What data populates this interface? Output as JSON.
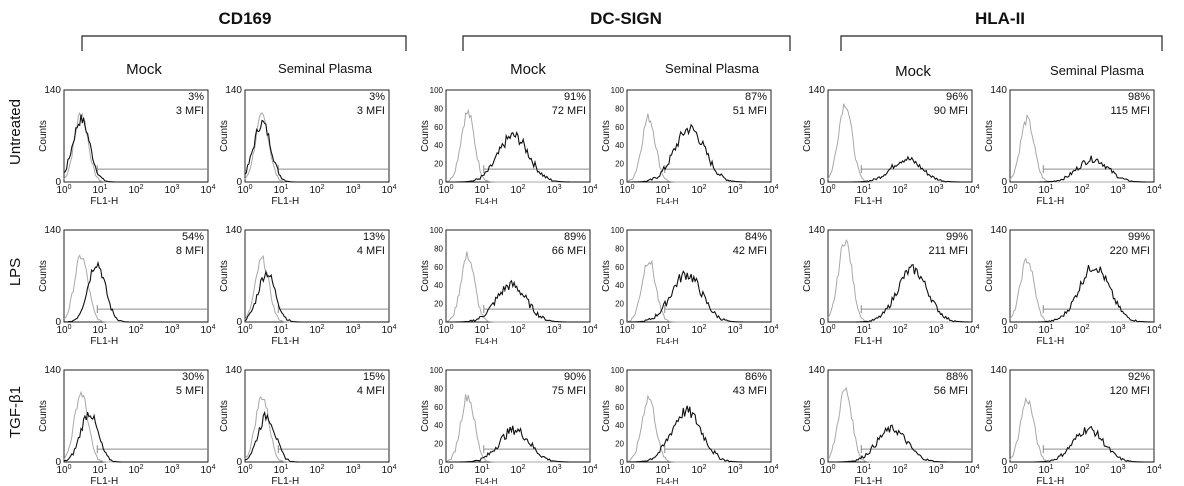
{
  "figure": {
    "markers": [
      {
        "id": "cd169",
        "title": "CD169",
        "scale": "140"
      },
      {
        "id": "dcsign",
        "title": "DC-SIGN",
        "scale": "100"
      },
      {
        "id": "hla",
        "title": "HLA-II",
        "scale": "140"
      }
    ],
    "conditions": [
      "Mock",
      "Seminal Plasma"
    ],
    "treatments": [
      "Untreated",
      "LPS",
      "TGF-β1"
    ],
    "y_axis_label": "Counts",
    "x_axis_labels": {
      "cd169": "FL1-H",
      "dcsign": "FL4-H",
      "hla": "FL1-H"
    },
    "x_ticks": [
      "10",
      "10",
      "10",
      "10",
      "10"
    ],
    "x_tick_exponents": [
      "0",
      "1",
      "2",
      "3",
      "4"
    ],
    "y_ticks_140": [
      "0",
      "140"
    ],
    "y_ticks_100": [
      "0",
      "20",
      "40",
      "60",
      "80",
      "100"
    ]
  },
  "chart_data": {
    "type": "histogram-overlay",
    "x_scale": "log",
    "xlim": [
      1,
      10000
    ],
    "panels": [
      {
        "marker": "CD169",
        "condition": "Mock",
        "treatment": "Untreated",
        "percent": "3%",
        "mfi": "3 MFI",
        "ymax": 140,
        "control_peak": [
          3,
          105
        ],
        "sample_peak": [
          3,
          95
        ]
      },
      {
        "marker": "CD169",
        "condition": "Seminal Plasma",
        "treatment": "Untreated",
        "percent": "3%",
        "mfi": "3 MFI",
        "ymax": 140,
        "control_peak": [
          3,
          100
        ],
        "sample_peak": [
          3,
          90
        ]
      },
      {
        "marker": "DC-SIGN",
        "condition": "Mock",
        "treatment": "Untreated",
        "percent": "91%",
        "mfi": "72 MFI",
        "ymax": 100,
        "control_peak": [
          4,
          75
        ],
        "sample_peak": [
          75,
          50
        ]
      },
      {
        "marker": "DC-SIGN",
        "condition": "Seminal Plasma",
        "treatment": "Untreated",
        "percent": "87%",
        "mfi": "51 MFI",
        "ymax": 100,
        "control_peak": [
          4,
          70
        ],
        "sample_peak": [
          55,
          58
        ]
      },
      {
        "marker": "HLA-II",
        "condition": "Mock",
        "treatment": "Untreated",
        "percent": "96%",
        "mfi": "90 MFI",
        "ymax": 140,
        "control_peak": [
          3,
          120
        ],
        "sample_peak": [
          150,
          35
        ]
      },
      {
        "marker": "HLA-II",
        "condition": "Seminal Plasma",
        "treatment": "Untreated",
        "percent": "98%",
        "mfi": "115 MFI",
        "ymax": 140,
        "control_peak": [
          3,
          95
        ],
        "sample_peak": [
          200,
          35
        ]
      },
      {
        "marker": "CD169",
        "condition": "Mock",
        "treatment": "LPS",
        "percent": "54%",
        "mfi": "8 MFI",
        "ymax": 140,
        "control_peak": [
          3,
          100
        ],
        "sample_peak": [
          8,
          90
        ]
      },
      {
        "marker": "CD169",
        "condition": "Seminal Plasma",
        "treatment": "LPS",
        "percent": "13%",
        "mfi": "4 MFI",
        "ymax": 140,
        "control_peak": [
          3,
          95
        ],
        "sample_peak": [
          4,
          75
        ]
      },
      {
        "marker": "DC-SIGN",
        "condition": "Mock",
        "treatment": "LPS",
        "percent": "89%",
        "mfi": "66 MFI",
        "ymax": 100,
        "control_peak": [
          4,
          72
        ],
        "sample_peak": [
          65,
          40
        ]
      },
      {
        "marker": "DC-SIGN",
        "condition": "Seminal Plasma",
        "treatment": "LPS",
        "percent": "84%",
        "mfi": "42 MFI",
        "ymax": 100,
        "control_peak": [
          4,
          68
        ],
        "sample_peak": [
          45,
          52
        ]
      },
      {
        "marker": "HLA-II",
        "condition": "Mock",
        "treatment": "LPS",
        "percent": "99%",
        "mfi": "211 MFI",
        "ymax": 140,
        "control_peak": [
          3,
          125
        ],
        "sample_peak": [
          220,
          80
        ]
      },
      {
        "marker": "HLA-II",
        "condition": "Seminal Plasma",
        "treatment": "LPS",
        "percent": "99%",
        "mfi": "220 MFI",
        "ymax": 140,
        "control_peak": [
          3,
          95
        ],
        "sample_peak": [
          220,
          85
        ]
      },
      {
        "marker": "CD169",
        "condition": "Mock",
        "treatment": "TGF-β1",
        "percent": "30%",
        "mfi": "5 MFI",
        "ymax": 140,
        "control_peak": [
          3,
          105
        ],
        "sample_peak": [
          5,
          75
        ]
      },
      {
        "marker": "CD169",
        "condition": "Seminal Plasma",
        "treatment": "TGF-β1",
        "percent": "15%",
        "mfi": "4 MFI",
        "ymax": 140,
        "control_peak": [
          3,
          100
        ],
        "sample_peak": [
          4,
          70
        ]
      },
      {
        "marker": "DC-SIGN",
        "condition": "Mock",
        "treatment": "TGF-β1",
        "percent": "90%",
        "mfi": "75 MFI",
        "ymax": 100,
        "control_peak": [
          4,
          72
        ],
        "sample_peak": [
          80,
          35
        ]
      },
      {
        "marker": "DC-SIGN",
        "condition": "Seminal Plasma",
        "treatment": "TGF-β1",
        "percent": "86%",
        "mfi": "43 MFI",
        "ymax": 100,
        "control_peak": [
          4,
          70
        ],
        "sample_peak": [
          45,
          55
        ]
      },
      {
        "marker": "HLA-II",
        "condition": "Mock",
        "treatment": "TGF-β1",
        "percent": "88%",
        "mfi": "56 MFI",
        "ymax": 140,
        "control_peak": [
          3,
          110
        ],
        "sample_peak": [
          60,
          50
        ]
      },
      {
        "marker": "HLA-II",
        "condition": "Seminal Plasma",
        "treatment": "TGF-β1",
        "percent": "92%",
        "mfi": "120 MFI",
        "ymax": 140,
        "control_peak": [
          3,
          95
        ],
        "sample_peak": [
          150,
          50
        ]
      }
    ]
  }
}
